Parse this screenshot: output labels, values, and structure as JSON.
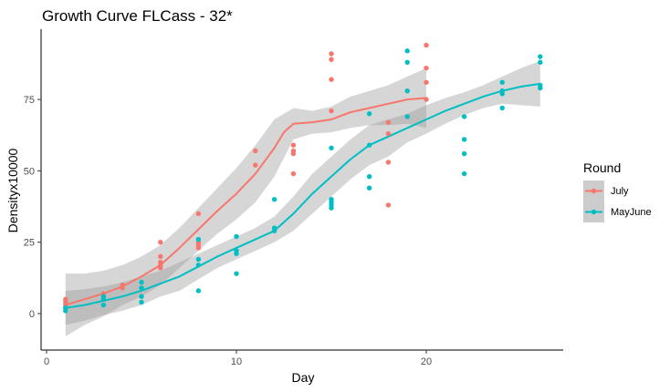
{
  "chart_data": {
    "type": "scatter",
    "title": "Growth Curve FLCass - 32*",
    "xlabel": "Day",
    "ylabel": "Densityx10000",
    "xlim": [
      0,
      27
    ],
    "ylim": [
      -12,
      100
    ],
    "x_ticks": [
      0,
      10,
      20
    ],
    "y_ticks": [
      0,
      25,
      50,
      75
    ],
    "grid": false,
    "legend": {
      "title": "Round",
      "position": "right"
    },
    "series": [
      {
        "name": "July",
        "color": "#F8766D",
        "points": [
          [
            1,
            2
          ],
          [
            1,
            3
          ],
          [
            1,
            4
          ],
          [
            1,
            5
          ],
          [
            3,
            5
          ],
          [
            3,
            7
          ],
          [
            4,
            9
          ],
          [
            4,
            10
          ],
          [
            6,
            16
          ],
          [
            6,
            17
          ],
          [
            6,
            18
          ],
          [
            6,
            20
          ],
          [
            6,
            25
          ],
          [
            8,
            23
          ],
          [
            8,
            24
          ],
          [
            8,
            25
          ],
          [
            8,
            35
          ],
          [
            11,
            52
          ],
          [
            11,
            57
          ],
          [
            13,
            49
          ],
          [
            13,
            56
          ],
          [
            13,
            57
          ],
          [
            13,
            59
          ],
          [
            15,
            71
          ],
          [
            15,
            82
          ],
          [
            15,
            89
          ],
          [
            15,
            91
          ],
          [
            18,
            38
          ],
          [
            18,
            53
          ],
          [
            18,
            63
          ],
          [
            18,
            67
          ],
          [
            20,
            75
          ],
          [
            20,
            81
          ],
          [
            20,
            86
          ],
          [
            20,
            94
          ]
        ],
        "fit": [
          [
            1,
            3
          ],
          [
            2,
            5
          ],
          [
            3,
            7
          ],
          [
            4,
            9.5
          ],
          [
            5,
            13
          ],
          [
            6,
            17
          ],
          [
            7,
            23
          ],
          [
            8,
            29.5
          ],
          [
            9,
            36
          ],
          [
            10,
            42
          ],
          [
            11,
            49
          ],
          [
            12,
            58
          ],
          [
            12.5,
            63.5
          ],
          [
            13,
            66.5
          ],
          [
            14,
            67
          ],
          [
            15,
            68
          ],
          [
            16,
            70.5
          ],
          [
            17,
            72
          ],
          [
            18,
            73.5
          ],
          [
            19,
            75
          ],
          [
            20,
            75.5
          ]
        ],
        "band_upper": [
          [
            1,
            14
          ],
          [
            2,
            14
          ],
          [
            3,
            15
          ],
          [
            4,
            17
          ],
          [
            5,
            20
          ],
          [
            6,
            24
          ],
          [
            7,
            30
          ],
          [
            8,
            37
          ],
          [
            9,
            44
          ],
          [
            10,
            51
          ],
          [
            11,
            59
          ],
          [
            12,
            68
          ],
          [
            13,
            72
          ],
          [
            14,
            71
          ],
          [
            15,
            72.5
          ],
          [
            16,
            76
          ],
          [
            17,
            78
          ],
          [
            18,
            80
          ],
          [
            19,
            83
          ],
          [
            20,
            86
          ]
        ],
        "band_lower": [
          [
            1,
            -8
          ],
          [
            2,
            -4
          ],
          [
            3,
            -1
          ],
          [
            4,
            3
          ],
          [
            5,
            6
          ],
          [
            6,
            10
          ],
          [
            7,
            16
          ],
          [
            8,
            22
          ],
          [
            9,
            28
          ],
          [
            10,
            33
          ],
          [
            11,
            39
          ],
          [
            12,
            48
          ],
          [
            13,
            61
          ],
          [
            14,
            63
          ],
          [
            15,
            63.5
          ],
          [
            16,
            65
          ],
          [
            17,
            66
          ],
          [
            18,
            66
          ],
          [
            19,
            66.5
          ],
          [
            20,
            65
          ]
        ]
      },
      {
        "name": "MayJune",
        "color": "#00BFC4",
        "points": [
          [
            1,
            1
          ],
          [
            1,
            2
          ],
          [
            3,
            3
          ],
          [
            3,
            5
          ],
          [
            3,
            6
          ],
          [
            5,
            4
          ],
          [
            5,
            6
          ],
          [
            5,
            9
          ],
          [
            5,
            11
          ],
          [
            8,
            8
          ],
          [
            8,
            17
          ],
          [
            8,
            19
          ],
          [
            8,
            26
          ],
          [
            10,
            14
          ],
          [
            10,
            21
          ],
          [
            10,
            22
          ],
          [
            10,
            27
          ],
          [
            12,
            29
          ],
          [
            12,
            30
          ],
          [
            12,
            40
          ],
          [
            15,
            37
          ],
          [
            15,
            38
          ],
          [
            15,
            39
          ],
          [
            15,
            40
          ],
          [
            15,
            58
          ],
          [
            17,
            44
          ],
          [
            17,
            48
          ],
          [
            17,
            59
          ],
          [
            17,
            70
          ],
          [
            19,
            69
          ],
          [
            19,
            78
          ],
          [
            19,
            88
          ],
          [
            19,
            92
          ],
          [
            22,
            49
          ],
          [
            22,
            56
          ],
          [
            22,
            61
          ],
          [
            22,
            69
          ],
          [
            24,
            72
          ],
          [
            24,
            77
          ],
          [
            24,
            78
          ],
          [
            24,
            81
          ],
          [
            26,
            79
          ],
          [
            26,
            80
          ],
          [
            26,
            88
          ],
          [
            26,
            90
          ]
        ],
        "fit": [
          [
            1,
            2
          ],
          [
            2,
            3
          ],
          [
            3,
            4.5
          ],
          [
            4,
            6
          ],
          [
            5,
            8
          ],
          [
            6,
            10.5
          ],
          [
            7,
            13
          ],
          [
            8,
            16.5
          ],
          [
            9,
            20
          ],
          [
            10,
            23
          ],
          [
            11,
            26
          ],
          [
            12,
            29
          ],
          [
            13,
            35
          ],
          [
            14,
            42
          ],
          [
            15,
            48
          ],
          [
            16,
            54
          ],
          [
            17,
            59
          ],
          [
            18,
            62
          ],
          [
            19,
            65
          ],
          [
            20,
            68
          ],
          [
            21,
            71
          ],
          [
            22,
            73.5
          ],
          [
            23,
            76
          ],
          [
            24,
            78
          ],
          [
            25,
            79.5
          ],
          [
            26,
            80.5
          ]
        ],
        "band_upper": [
          [
            1,
            8
          ],
          [
            2,
            8.5
          ],
          [
            3,
            9.5
          ],
          [
            4,
            11
          ],
          [
            5,
            13
          ],
          [
            6,
            15
          ],
          [
            7,
            18
          ],
          [
            8,
            21
          ],
          [
            9,
            24
          ],
          [
            10,
            27
          ],
          [
            11,
            30
          ],
          [
            12,
            34
          ],
          [
            13,
            41
          ],
          [
            14,
            49
          ],
          [
            15,
            55
          ],
          [
            16,
            61
          ],
          [
            17,
            66
          ],
          [
            18,
            68
          ],
          [
            19,
            70
          ],
          [
            20,
            73
          ],
          [
            21,
            75.5
          ],
          [
            22,
            77.5
          ],
          [
            23,
            80
          ],
          [
            24,
            83
          ],
          [
            25,
            86
          ],
          [
            26,
            88.5
          ]
        ],
        "band_lower": [
          [
            1,
            -4
          ],
          [
            2,
            -2.5
          ],
          [
            3,
            -0.5
          ],
          [
            4,
            1
          ],
          [
            5,
            3
          ],
          [
            6,
            6
          ],
          [
            7,
            8
          ],
          [
            8,
            12
          ],
          [
            9,
            16
          ],
          [
            10,
            19
          ],
          [
            11,
            22
          ],
          [
            12,
            25
          ],
          [
            13,
            29
          ],
          [
            14,
            35
          ],
          [
            15,
            41
          ],
          [
            16,
            47
          ],
          [
            17,
            52
          ],
          [
            18,
            55
          ],
          [
            19,
            60
          ],
          [
            20,
            63
          ],
          [
            21,
            66.5
          ],
          [
            22,
            69.5
          ],
          [
            23,
            72
          ],
          [
            24,
            73.5
          ],
          [
            25,
            73
          ],
          [
            26,
            72.5
          ]
        ]
      }
    ]
  }
}
